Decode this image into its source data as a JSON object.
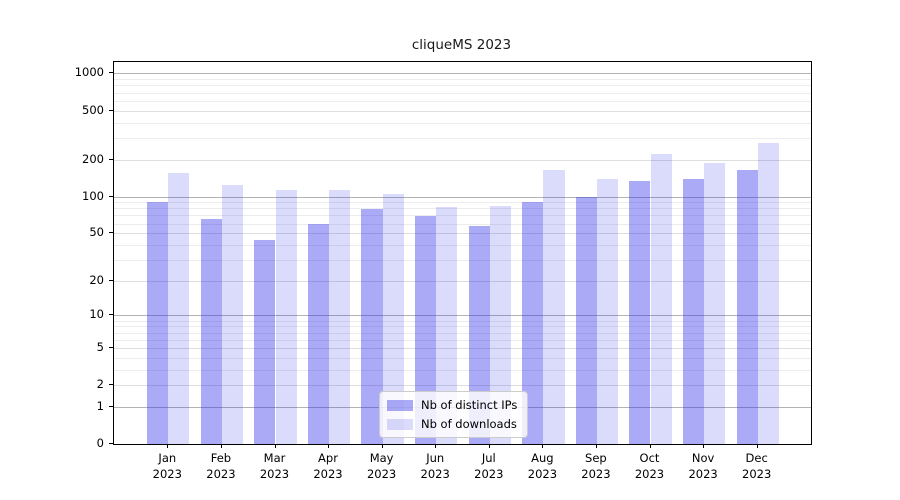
{
  "title": "cliqueMS 2023",
  "chart_data": {
    "type": "bar",
    "title": "cliqueMS 2023",
    "categories": [
      "Jan 2023",
      "Feb 2023",
      "Mar 2023",
      "Apr 2023",
      "May 2023",
      "Jun 2023",
      "Jul 2023",
      "Aug 2023",
      "Sep 2023",
      "Oct 2023",
      "Nov 2023",
      "Dec 2023"
    ],
    "series": [
      {
        "name": "Nb of distinct IPs",
        "color": "rgba(43, 43, 233, 0.40)",
        "values": [
          91,
          65,
          44,
          60,
          79,
          69,
          57,
          91,
          99,
          134,
          139,
          166
        ]
      },
      {
        "name": "Nb of downloads",
        "color": "rgba(43, 43, 233, 0.17)",
        "values": [
          155,
          124,
          113,
          114,
          105,
          82,
          84,
          165,
          138,
          222,
          188,
          275
        ]
      }
    ],
    "yscale": "log1p",
    "yticks": [
      0,
      1,
      2,
      5,
      10,
      20,
      50,
      100,
      200,
      500,
      1000
    ],
    "ylim": [
      0,
      1240
    ],
    "xlabel": "",
    "ylabel": "",
    "grid": true,
    "legend_position": "lower center"
  },
  "colors": {
    "grid_major": "#b3b3b3",
    "grid_labeled": "#dedede",
    "grid_minor": "#ececec",
    "spine": "#000000",
    "background": "#ffffff"
  }
}
